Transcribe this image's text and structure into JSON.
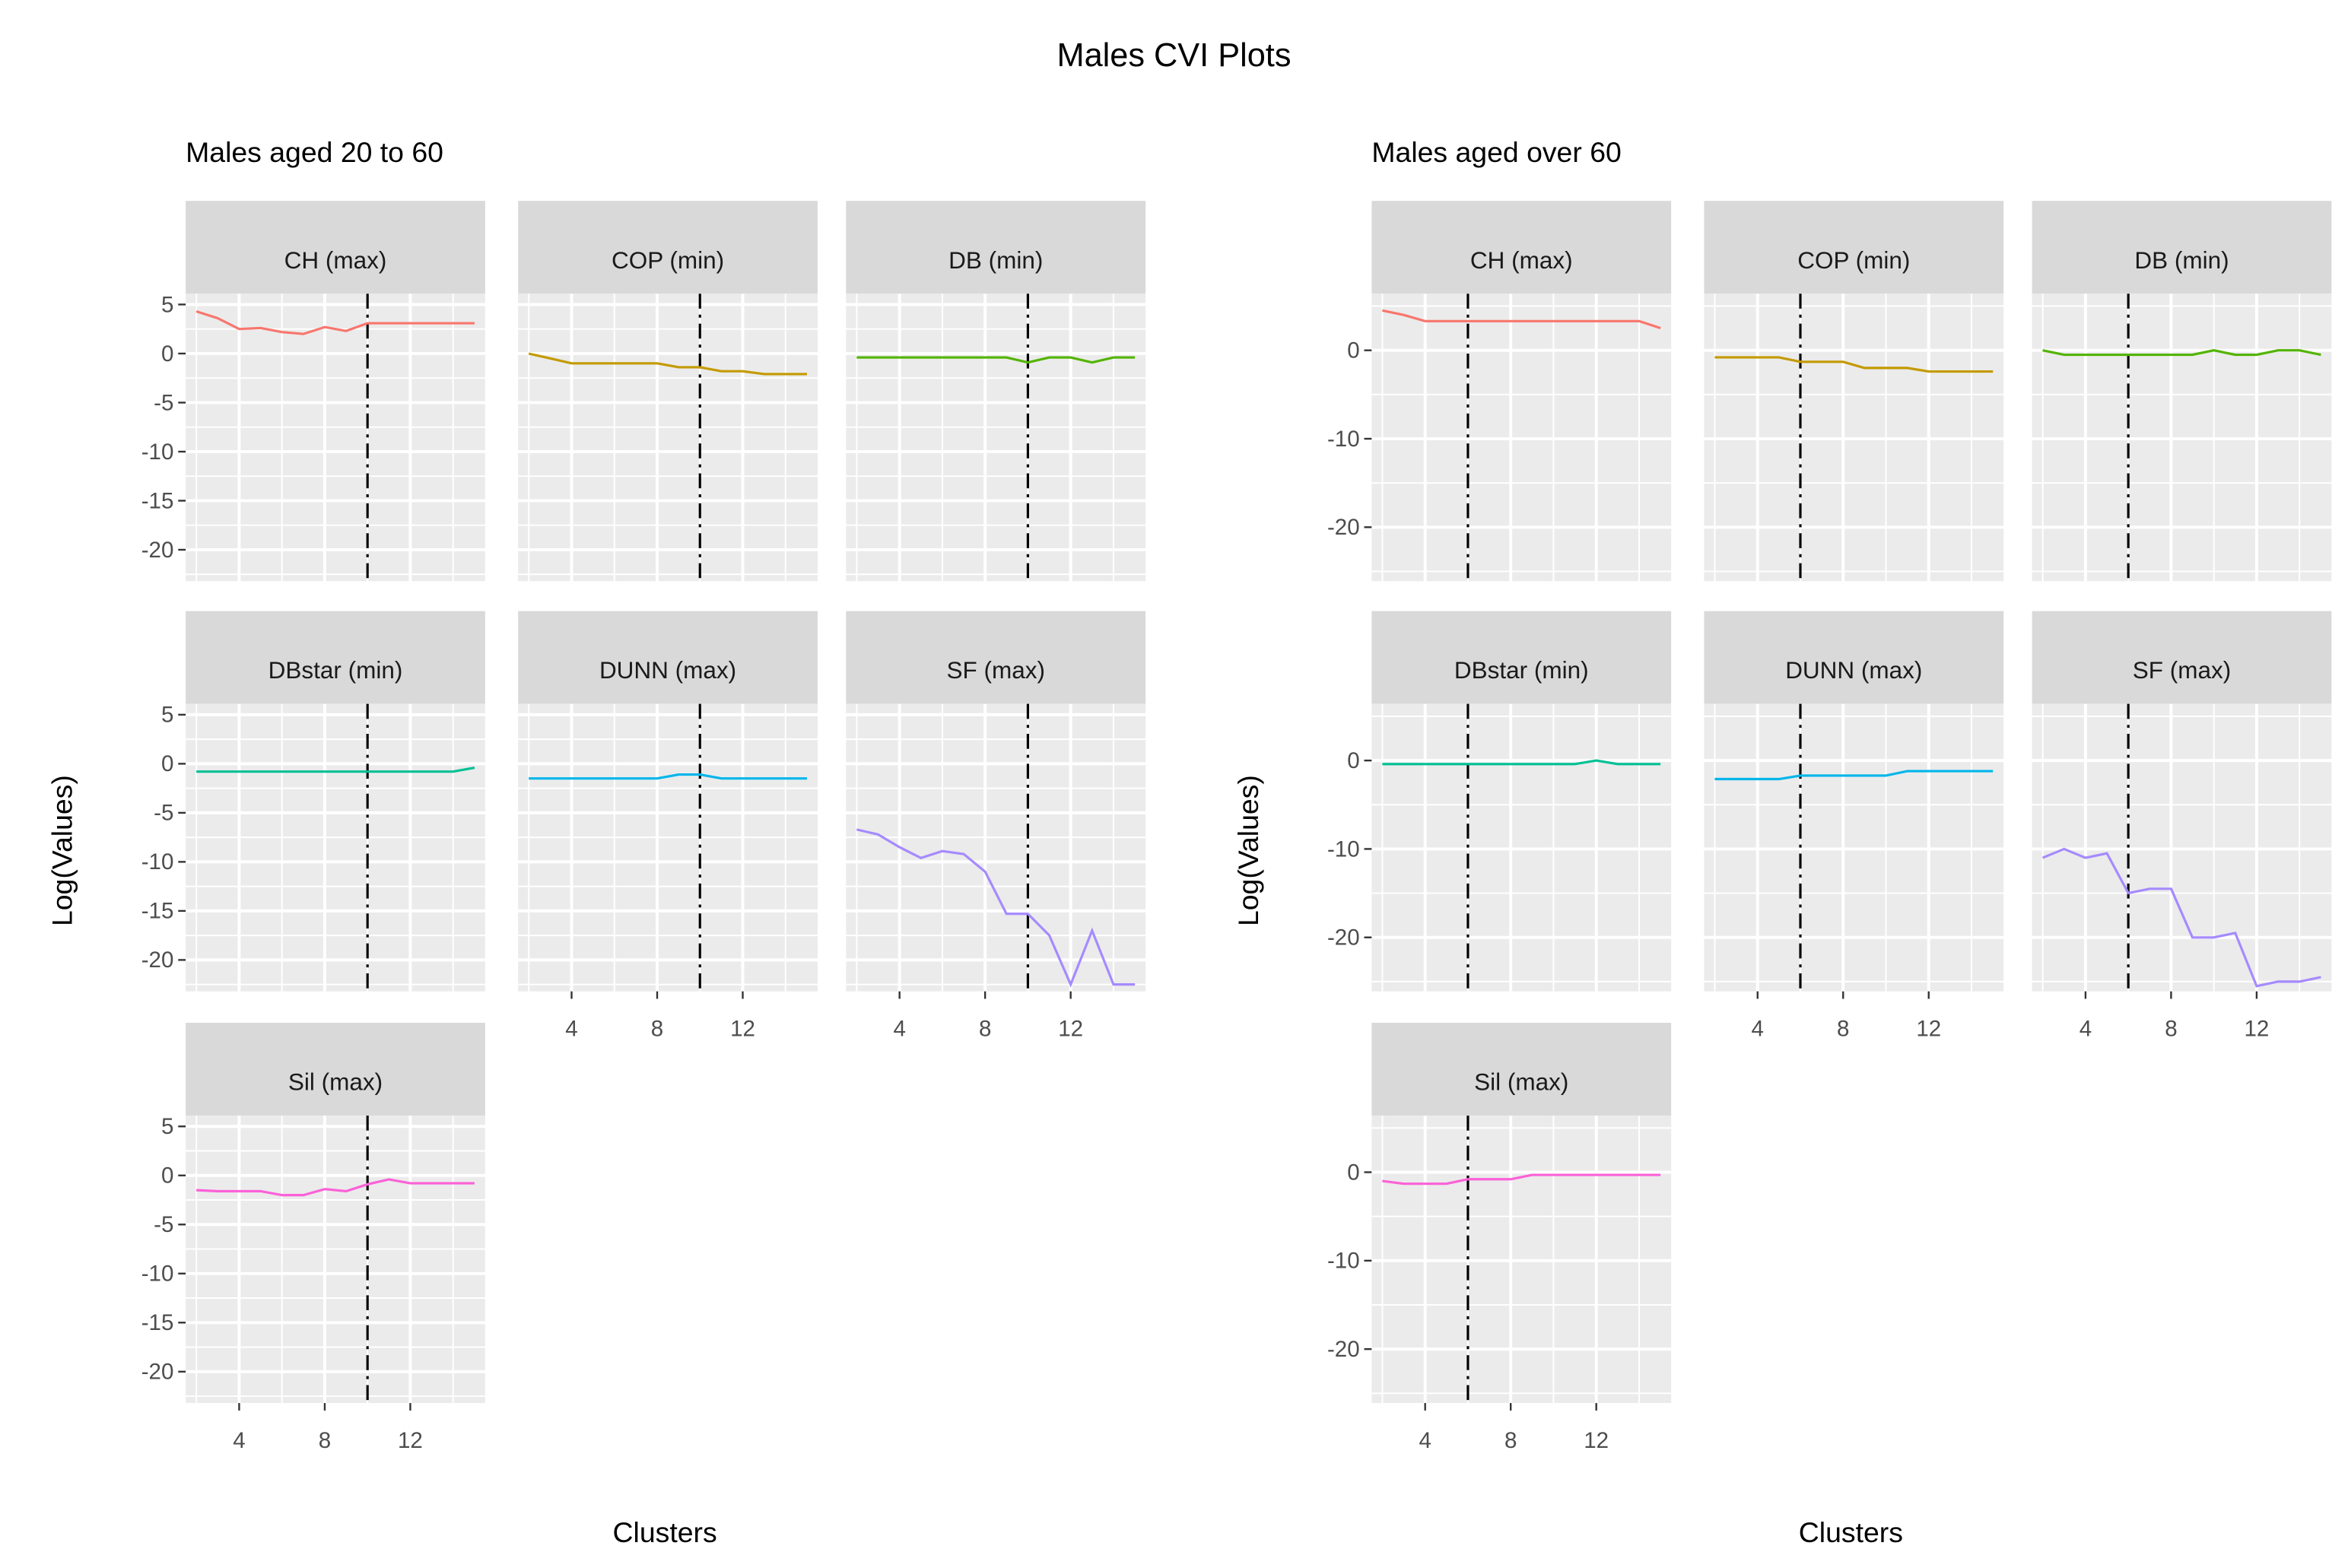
{
  "chart_data": {
    "type": "line",
    "title": "Males CVI Plots",
    "colors": {
      "CH": "#F8766D",
      "COP": "#C49A00",
      "DB": "#53B400",
      "DBstar": "#00C094",
      "DUNN": "#00B6EB",
      "SF": "#A58AFF",
      "Sil": "#FB61D7"
    },
    "x": [
      2,
      3,
      4,
      5,
      6,
      7,
      8,
      9,
      10,
      11,
      12,
      13,
      14,
      15
    ],
    "xticks": [
      4,
      8,
      12
    ],
    "xlim": [
      1.5,
      15.5
    ],
    "groups": [
      {
        "subtitle": "Males aged 20 to 60",
        "xlabel": "Clusters",
        "ylabel": "Log(Values)",
        "ylim": [
          -23.2,
          6.1
        ],
        "yticks": [
          5,
          0,
          -5,
          -10,
          -15,
          -20
        ],
        "ytick_labels": [
          "5",
          "0",
          "-5",
          "-10",
          "-15",
          "-20"
        ],
        "optimal_k": 10,
        "panels": [
          {
            "key": "CH",
            "label": "CH (max)",
            "values": [
              4.3,
              3.6,
              2.5,
              2.6,
              2.2,
              2.0,
              2.7,
              2.3,
              3.1,
              3.1,
              3.1,
              3.1,
              3.1,
              3.1
            ]
          },
          {
            "key": "COP",
            "label": "COP (min)",
            "values": [
              0,
              -0.5,
              -1,
              -1,
              -1,
              -1,
              -1,
              -1.4,
              -1.4,
              -1.8,
              -1.8,
              -2.1,
              -2.1,
              -2.1
            ]
          },
          {
            "key": "DB",
            "label": "DB (min)",
            "values": [
              -0.4,
              -0.4,
              -0.4,
              -0.4,
              -0.4,
              -0.4,
              -0.4,
              -0.4,
              -0.9,
              -0.4,
              -0.4,
              -0.9,
              -0.4,
              -0.4
            ]
          },
          {
            "key": "DBstar",
            "label": "DBstar (min)",
            "values": [
              -0.8,
              -0.8,
              -0.8,
              -0.8,
              -0.8,
              -0.8,
              -0.8,
              -0.8,
              -0.8,
              -0.8,
              -0.8,
              -0.8,
              -0.8,
              -0.4
            ]
          },
          {
            "key": "DUNN",
            "label": "DUNN (max)",
            "values": [
              -1.5,
              -1.5,
              -1.5,
              -1.5,
              -1.5,
              -1.5,
              -1.5,
              -1.1,
              -1.1,
              -1.5,
              -1.5,
              -1.5,
              -1.5,
              -1.5
            ]
          },
          {
            "key": "SF",
            "label": "SF (max)",
            "values": [
              -6.7,
              -7.2,
              -8.5,
              -9.6,
              -8.9,
              -9.2,
              -11,
              -15.3,
              -15.3,
              -17.5,
              -22.5,
              -17,
              -22.5,
              -22.5
            ]
          },
          {
            "key": "Sil",
            "label": "Sil (max)",
            "values": [
              -1.5,
              -1.6,
              -1.6,
              -1.6,
              -2,
              -2,
              -1.4,
              -1.6,
              -0.9,
              -0.4,
              -0.8,
              -0.8,
              -0.8,
              -0.8
            ]
          }
        ]
      },
      {
        "subtitle": "Males aged over 60",
        "xlabel": "Clusters",
        "ylabel": "Log(Values)",
        "ylim": [
          -26.1,
          6.4
        ],
        "yticks": [
          0,
          -10,
          -20
        ],
        "ytick_labels": [
          "0",
          "-10",
          "-20"
        ],
        "optimal_k": 6,
        "panels": [
          {
            "key": "CH",
            "label": "CH (max)",
            "values": [
              4.5,
              4,
              3.3,
              3.3,
              3.3,
              3.3,
              3.3,
              3.3,
              3.3,
              3.3,
              3.3,
              3.3,
              3.3,
              2.5
            ]
          },
          {
            "key": "COP",
            "label": "COP (min)",
            "values": [
              -0.8,
              -0.8,
              -0.8,
              -0.8,
              -1.3,
              -1.3,
              -1.3,
              -2,
              -2,
              -2,
              -2.4,
              -2.4,
              -2.4,
              -2.4
            ]
          },
          {
            "key": "DB",
            "label": "DB (min)",
            "values": [
              0,
              -0.5,
              -0.5,
              -0.5,
              -0.5,
              -0.5,
              -0.5,
              -0.5,
              0,
              -0.5,
              -0.5,
              0,
              0,
              -0.5
            ]
          },
          {
            "key": "DBstar",
            "label": "DBstar (min)",
            "values": [
              -0.4,
              -0.4,
              -0.4,
              -0.4,
              -0.4,
              -0.4,
              -0.4,
              -0.4,
              -0.4,
              -0.4,
              0,
              -0.4,
              -0.4,
              -0.4
            ]
          },
          {
            "key": "DUNN",
            "label": "DUNN (max)",
            "values": [
              -2.1,
              -2.1,
              -2.1,
              -2.1,
              -1.7,
              -1.7,
              -1.7,
              -1.7,
              -1.7,
              -1.2,
              -1.2,
              -1.2,
              -1.2,
              -1.2
            ]
          },
          {
            "key": "SF",
            "label": "SF (max)",
            "values": [
              -11,
              -10,
              -11,
              -10.5,
              -15,
              -14.5,
              -14.5,
              -20,
              -20,
              -19.5,
              -25.5,
              -25,
              -25,
              -24.5
            ]
          },
          {
            "key": "Sil",
            "label": "Sil (max)",
            "values": [
              -1,
              -1.3,
              -1.3,
              -1.3,
              -0.8,
              -0.8,
              -0.8,
              -0.3,
              -0.3,
              -0.3,
              -0.3,
              -0.3,
              -0.3,
              -0.3
            ]
          }
        ]
      }
    ]
  }
}
